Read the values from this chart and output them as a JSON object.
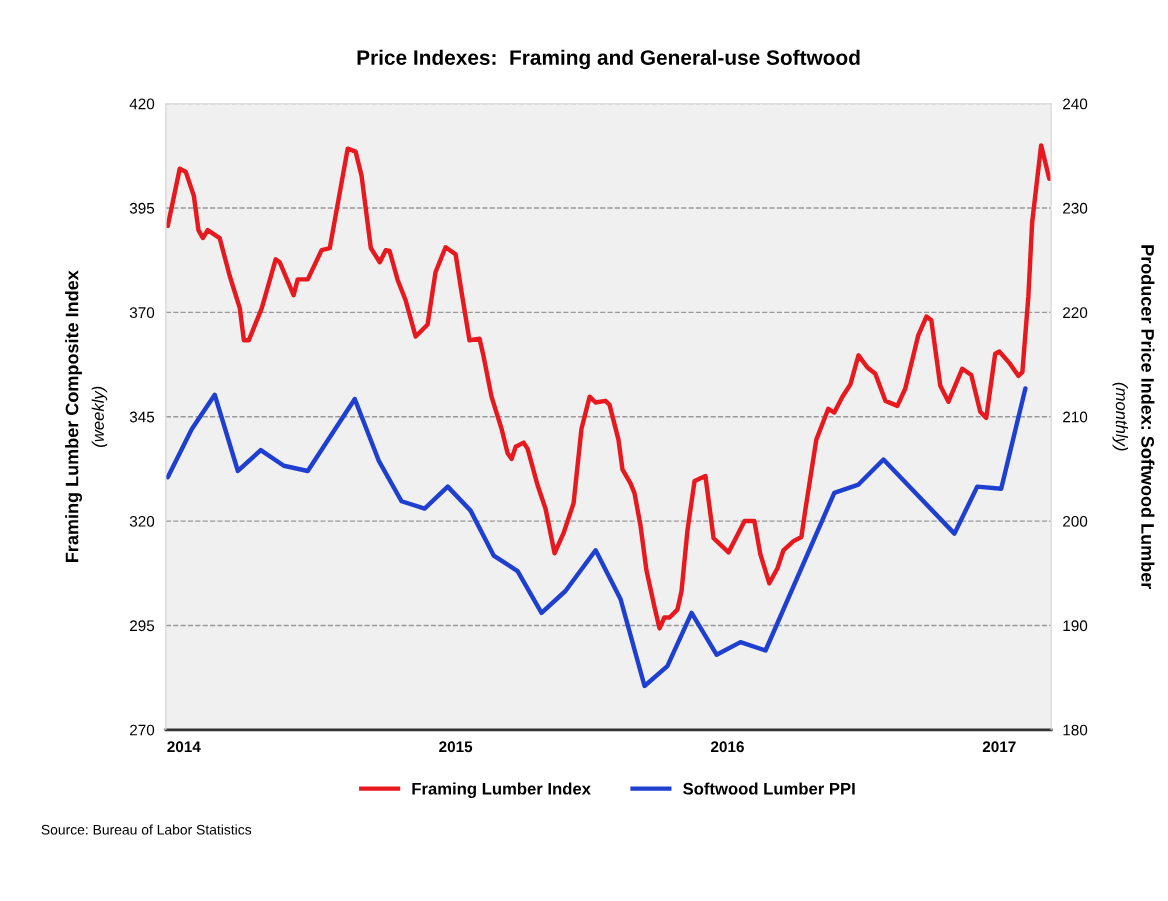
{
  "chart_data": {
    "type": "line",
    "title": "Price Indexes:  Framing and General-use Softwood",
    "ylabel": "Framing Lumber Composite Index\n(weekly)",
    "y2label": "Producer Price Index: Softwood Lumber\n(monthly)",
    "xlim": [
      2013.934,
      2017.191
    ],
    "xticks": [
      2014,
      2015,
      2016,
      2017
    ],
    "ylim": [
      270,
      420
    ],
    "yticks": [
      270,
      295,
      320,
      345,
      370,
      395,
      420
    ],
    "y2lim": [
      180,
      240
    ],
    "y2ticks": [
      180,
      190,
      200,
      210,
      220,
      230,
      240
    ],
    "grid": "y",
    "legend": "bottom",
    "line_style": "solid",
    "marker": "none",
    "annotations": [
      "Source: Bureau of Labor Statistics"
    ],
    "series": [
      {
        "name": "Framing Lumber Index",
        "color": "#e8191e",
        "axis": "y",
        "x": [
          2013.941,
          2013.985,
          2014.007,
          2014.037,
          2014.054,
          2014.07,
          2014.088,
          2014.132,
          2014.169,
          2014.206,
          2014.221,
          2014.239,
          2014.287,
          2014.338,
          2014.353,
          2014.404,
          2014.419,
          2014.456,
          2014.507,
          2014.537,
          2014.603,
          2014.632,
          2014.654,
          2014.688,
          2014.721,
          2014.743,
          2014.757,
          2014.787,
          2014.816,
          2014.853,
          2014.897,
          2014.926,
          2014.963,
          2015.0,
          2015.022,
          2015.051,
          2015.088,
          2015.103,
          2015.132,
          2015.169,
          2015.191,
          2015.206,
          2015.221,
          2015.25,
          2015.265,
          2015.301,
          2015.331,
          2015.364,
          2015.397,
          2015.434,
          2015.463,
          2015.493,
          2015.515,
          2015.551,
          2015.566,
          2015.599,
          2015.614,
          2015.643,
          2015.658,
          2015.68,
          2015.702,
          2015.732,
          2015.75,
          2015.768,
          2015.787,
          2015.816,
          2015.831,
          2015.853,
          2015.879,
          2015.919,
          2015.949,
          2016.004,
          2016.063,
          2016.099,
          2016.121,
          2016.154,
          2016.184,
          2016.206,
          2016.243,
          2016.272,
          2016.287,
          2016.327,
          2016.371,
          2016.393,
          2016.423,
          2016.452,
          2016.482,
          2016.515,
          2016.544,
          2016.581,
          2016.625,
          2016.654,
          2016.702,
          2016.732,
          2016.75,
          2016.783,
          2016.813,
          2016.864,
          2016.897,
          2016.93,
          2016.952,
          2016.985,
          2017.0,
          2017.037,
          2017.07,
          2017.085,
          2017.107,
          2017.121,
          2017.154,
          2017.184
        ],
        "values": [
          390.7,
          404.4,
          403.7,
          397.9,
          389.7,
          387.8,
          389.7,
          387.8,
          378.7,
          371,
          363.3,
          363.3,
          371,
          382.7,
          382,
          374.1,
          377.9,
          377.9,
          384.9,
          385.4,
          409.2,
          408.5,
          402.7,
          385.4,
          382,
          384.9,
          384.7,
          377.7,
          372.9,
          364.2,
          367.1,
          379.6,
          385.6,
          383.9,
          374.8,
          363.3,
          363.7,
          359.4,
          349.8,
          342.1,
          336.3,
          334.9,
          337.8,
          338.8,
          337.3,
          328.7,
          322.9,
          312.3,
          317.1,
          324.3,
          342.1,
          349.8,
          348.4,
          348.8,
          347.9,
          339.5,
          332.3,
          329.1,
          326.7,
          319,
          308.2,
          299.3,
          294.3,
          296.9,
          296.9,
          298.8,
          303.2,
          317.8,
          329.6,
          330.8,
          315.9,
          312.5,
          320,
          320,
          312.1,
          305.1,
          308.7,
          313,
          315.2,
          316.2,
          322.9,
          339.5,
          346.9,
          346,
          349.8,
          352.7,
          359.7,
          356.8,
          355.3,
          348.8,
          347.6,
          351.7,
          364.5,
          369,
          368.1,
          352.4,
          348.6,
          356.5,
          355,
          346.2,
          344.7,
          360.1,
          360.6,
          357.9,
          354.8,
          355.7,
          373.8,
          391.6,
          410,
          402
        ]
      },
      {
        "name": "Softwood Lumber PPI",
        "color": "#1f3fd0",
        "axis": "y2",
        "x": [
          2013.941,
          2014.029,
          2014.114,
          2014.199,
          2014.283,
          2014.368,
          2014.456,
          2014.629,
          2014.717,
          2014.801,
          2014.886,
          2014.971,
          2015.055,
          2015.14,
          2015.228,
          2015.316,
          2015.404,
          2015.515,
          2015.607,
          2015.695,
          2015.779,
          2015.868,
          2015.96,
          2016.048,
          2016.14,
          2016.393,
          2016.482,
          2016.574,
          2016.835,
          2016.919,
          2017.007,
          2017.096
        ],
        "values": [
          204.2,
          208.8,
          212.1,
          204.8,
          206.8,
          205.3,
          204.8,
          211.7,
          205.8,
          201.9,
          201.2,
          203.3,
          201,
          196.7,
          195.2,
          191.2,
          193.3,
          197.2,
          192.5,
          184.2,
          186.1,
          191.2,
          187.2,
          188.4,
          187.6,
          202.7,
          203.5,
          205.9,
          198.8,
          203.3,
          203.1,
          212.7
        ]
      }
    ]
  }
}
